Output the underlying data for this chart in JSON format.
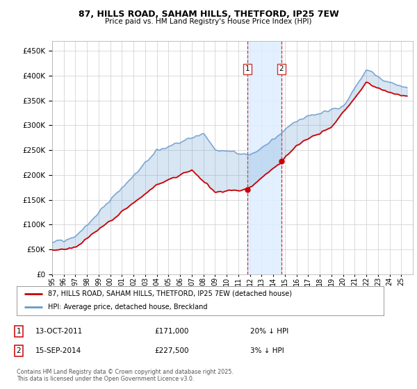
{
  "title_line1": "87, HILLS ROAD, SAHAM HILLS, THETFORD, IP25 7EW",
  "title_line2": "Price paid vs. HM Land Registry's House Price Index (HPI)",
  "legend_label1": "87, HILLS ROAD, SAHAM HILLS, THETFORD, IP25 7EW (detached house)",
  "legend_label2": "HPI: Average price, detached house, Breckland",
  "transaction1_date": "13-OCT-2011",
  "transaction1_price": "£171,000",
  "transaction1_hpi": "20% ↓ HPI",
  "transaction2_date": "15-SEP-2014",
  "transaction2_price": "£227,500",
  "transaction2_hpi": "3% ↓ HPI",
  "footnote": "Contains HM Land Registry data © Crown copyright and database right 2025.\nThis data is licensed under the Open Government Licence v3.0.",
  "color_red": "#cc0000",
  "color_blue": "#6699cc",
  "background_color": "#ffffff",
  "grid_color": "#cccccc",
  "ymin": 0,
  "ymax": 470000,
  "yticks": [
    0,
    50000,
    100000,
    150000,
    200000,
    250000,
    300000,
    350000,
    400000,
    450000
  ],
  "transaction1_year": 2011.79,
  "transaction1_value": 171000,
  "transaction2_year": 2014.71,
  "transaction2_value": 227500,
  "vband_color": "#ddeeff",
  "vline_color": "#cc3333"
}
